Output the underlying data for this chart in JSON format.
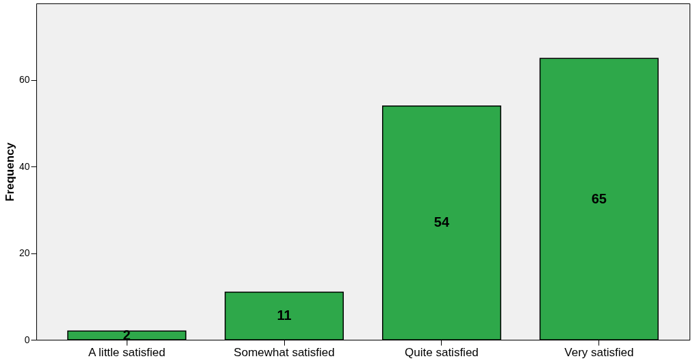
{
  "chart_data": {
    "type": "bar",
    "ylabel": "Frequency",
    "categories": [
      "A little satisfied",
      "Somewhat satisfied",
      "Quite satisfied",
      "Very satisfied"
    ],
    "values": [
      2,
      11,
      54,
      65
    ],
    "color": "#2ea84a",
    "ylim": [
      0,
      77.7
    ],
    "yticks": [
      0,
      20,
      40,
      60
    ],
    "grid": false,
    "data_labels": true
  }
}
